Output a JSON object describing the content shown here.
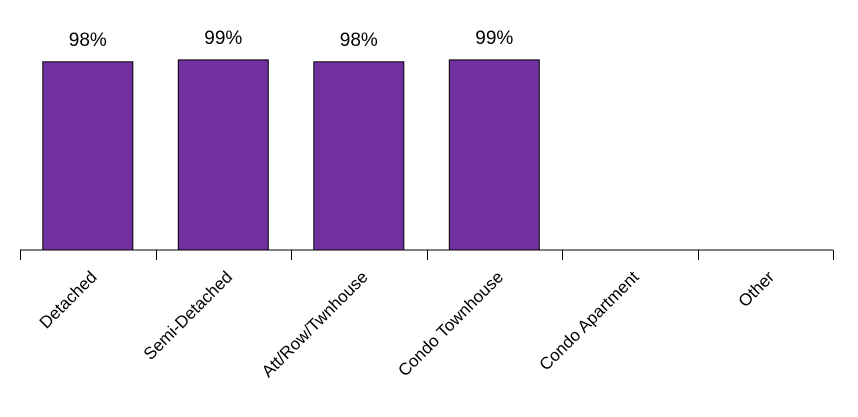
{
  "chart_data": {
    "type": "bar",
    "title": "",
    "xlabel": "",
    "ylabel": "",
    "categories": [
      "Detached",
      "Semi-Detached",
      "Att/Row/Twnhouse",
      "Condo Townhouse",
      "Condo Apartment",
      "Other"
    ],
    "values": [
      98,
      99,
      98,
      99,
      null,
      null
    ],
    "data_labels": [
      "98%",
      "99%",
      "98%",
      "99%",
      "",
      ""
    ],
    "ylim": [
      0,
      100
    ],
    "grid": false,
    "legend": "none",
    "colors": {
      "bar_fill": "#7030a0",
      "bar_stroke": "#000000",
      "axis": "#000000"
    }
  }
}
